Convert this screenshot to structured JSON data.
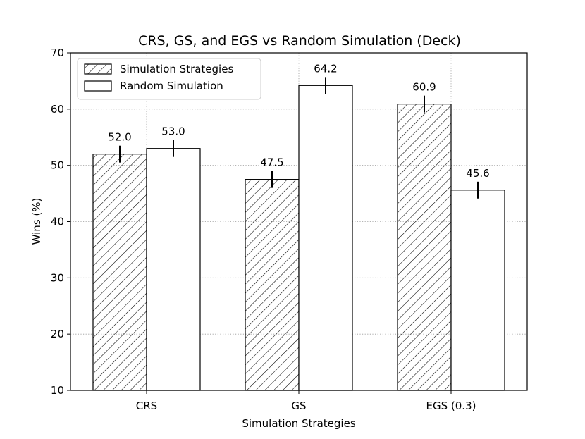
{
  "chart_data": {
    "type": "bar",
    "title": "CRS, GS, and EGS vs Random Simulation (Deck)",
    "xlabel": "Simulation Strategies",
    "ylabel": "Wins (%)",
    "ylim": [
      10,
      70
    ],
    "yticks": [
      10,
      20,
      30,
      40,
      50,
      60,
      70
    ],
    "grid": true,
    "legend_position": "top-left",
    "categories": [
      "CRS",
      "GS",
      "EGS (0.3)"
    ],
    "series": [
      {
        "name": "Simulation Strategies",
        "pattern": "hatched",
        "values": [
          52.0,
          47.5,
          60.9
        ],
        "labels": [
          "52.0",
          "47.5",
          "60.9"
        ],
        "error": [
          1.5,
          1.5,
          1.5
        ]
      },
      {
        "name": "Random Simulation",
        "pattern": "plain",
        "values": [
          53.0,
          64.2,
          45.6
        ],
        "labels": [
          "53.0",
          "64.2",
          "45.6"
        ],
        "error": [
          1.5,
          1.5,
          1.5
        ]
      }
    ]
  }
}
